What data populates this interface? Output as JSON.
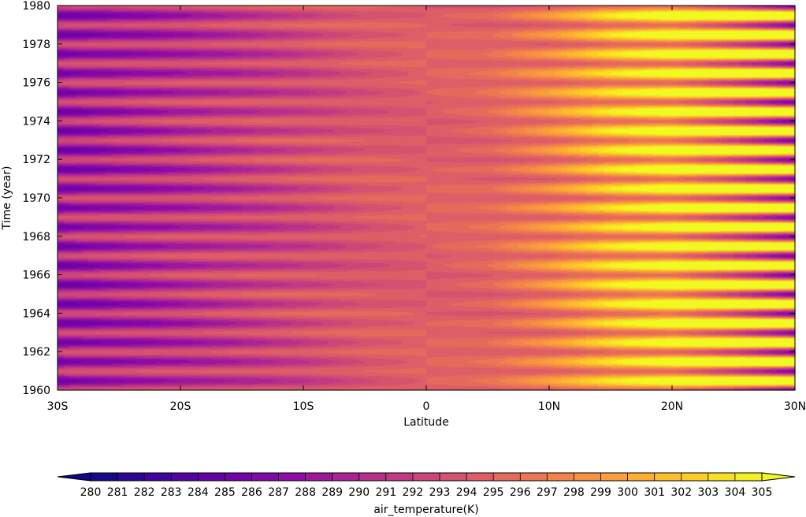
{
  "chart_data": {
    "type": "heatmap",
    "title": "",
    "xlabel": "Latitude",
    "ylabel": "Time (year)",
    "x_ticks": [
      {
        "value": -30,
        "label": "30S"
      },
      {
        "value": -20,
        "label": "20S"
      },
      {
        "value": -10,
        "label": "10S"
      },
      {
        "value": 0,
        "label": "0"
      },
      {
        "value": 10,
        "label": "10N"
      },
      {
        "value": 20,
        "label": "20N"
      },
      {
        "value": 30,
        "label": "30N"
      }
    ],
    "y_ticks": [
      1960,
      1962,
      1964,
      1966,
      1968,
      1970,
      1972,
      1974,
      1976,
      1978,
      1980
    ],
    "xlim": [
      -30,
      30
    ],
    "ylim": [
      1960,
      1980
    ],
    "colormap": "plasma",
    "colorbar": {
      "label": "air_temperature(K)",
      "ticks": [
        280,
        281,
        282,
        283,
        284,
        285,
        286,
        287,
        288,
        289,
        290,
        291,
        292,
        293,
        294,
        295,
        296,
        297,
        298,
        299,
        300,
        301,
        302,
        303,
        304,
        305
      ],
      "vmin": 280,
      "vmax": 305,
      "extend": "both"
    },
    "latitudes": [
      -30,
      -25,
      -20,
      -15,
      -10,
      -5,
      0,
      5,
      10,
      15,
      20,
      25,
      30
    ],
    "profile_annual_mean_K": [
      289,
      290,
      291,
      292,
      293,
      294,
      294.5,
      295,
      297,
      300,
      302,
      301,
      299
    ],
    "profile_seasonal_amplitude_K": [
      4.5,
      4.0,
      3.5,
      3.0,
      2.2,
      1.2,
      0.5,
      1.0,
      3.0,
      5.0,
      7.0,
      10.5,
      14.0
    ],
    "seasonal_cycle": {
      "period_years": 1,
      "southern_min_month": "July",
      "northern_min_month": "January"
    }
  }
}
